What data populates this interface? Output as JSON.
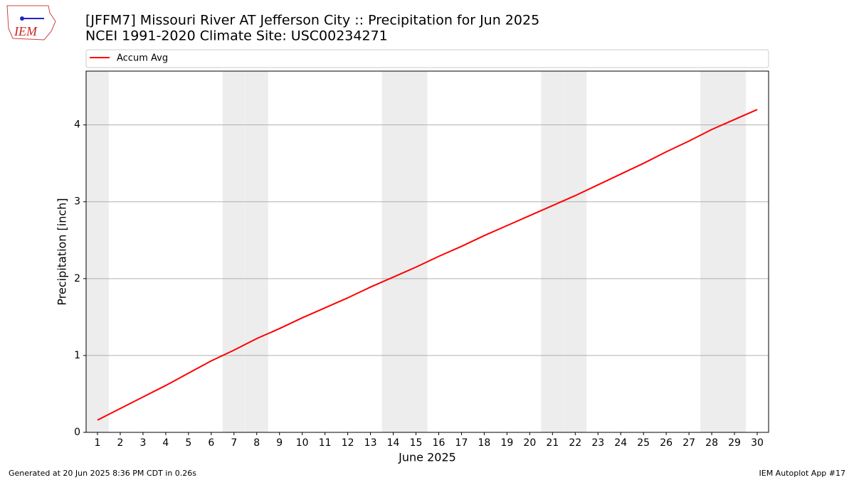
{
  "logo_text": "IEM",
  "chart_data": {
    "type": "line",
    "title": "[JFFM7] Missouri River  AT Jefferson City :: Precipitation for Jun 2025",
    "subtitle": "NCEI 1991-2020 Climate Site: USC00234271",
    "x_label": "June 2025",
    "y_label": "Precipitation [inch]",
    "x": [
      1,
      2,
      3,
      4,
      5,
      6,
      7,
      8,
      9,
      10,
      11,
      12,
      13,
      14,
      15,
      16,
      17,
      18,
      19,
      20,
      21,
      22,
      23,
      24,
      25,
      26,
      27,
      28,
      29,
      30
    ],
    "series": [
      {
        "name": "Accum Avg",
        "color": "#ff0000",
        "values": [
          0.16,
          0.31,
          0.46,
          0.61,
          0.77,
          0.93,
          1.07,
          1.22,
          1.35,
          1.49,
          1.62,
          1.75,
          1.89,
          2.02,
          2.15,
          2.29,
          2.42,
          2.56,
          2.69,
          2.82,
          2.95,
          3.08,
          3.22,
          3.36,
          3.5,
          3.65,
          3.79,
          3.94,
          4.07,
          4.2
        ]
      }
    ],
    "weekend_days": [
      1,
      7,
      8,
      14,
      15,
      21,
      22,
      28,
      29
    ],
    "xlim": [
      0.5,
      30.5
    ],
    "ylim": [
      0,
      4.7
    ],
    "xticks": [
      1,
      2,
      3,
      4,
      5,
      6,
      7,
      8,
      9,
      10,
      11,
      12,
      13,
      14,
      15,
      16,
      17,
      18,
      19,
      20,
      21,
      22,
      23,
      24,
      25,
      26,
      27,
      28,
      29,
      30
    ],
    "yticks": [
      0,
      1,
      2,
      3,
      4
    ],
    "grid": true,
    "legend": "top"
  },
  "footer": {
    "left": "Generated at 20 Jun 2025 8:36 PM CDT in 0.26s",
    "right": "IEM Autoplot App #17"
  }
}
